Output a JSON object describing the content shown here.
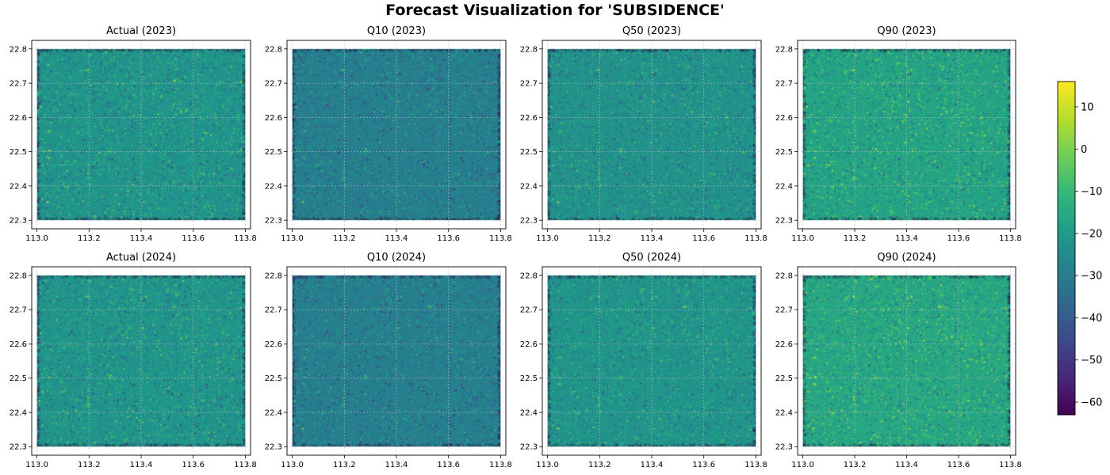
{
  "figure": {
    "title": "Forecast Visualization for 'SUBSIDENCE'"
  },
  "colors": {
    "grid": "#bdbdbd",
    "viridis": [
      "#440154",
      "#482878",
      "#3e4989",
      "#31688e",
      "#26828e",
      "#1f9e89",
      "#35b779",
      "#6ece58",
      "#b5de2b",
      "#fde725"
    ]
  },
  "chart_data": [
    {
      "type": "scatter",
      "title": "Actual (2023)",
      "xlim": [
        112.98,
        113.82
      ],
      "ylim": [
        22.275,
        22.825
      ],
      "xticks": [
        113.0,
        113.2,
        113.4,
        113.6,
        113.8
      ],
      "xtick_labels": [
        "113.0",
        "113.2",
        "113.4",
        "113.6",
        "113.8"
      ],
      "yticks": [
        22.3,
        22.4,
        22.5,
        22.6,
        22.7,
        22.8
      ],
      "ytick_labels": [
        "22.3",
        "22.4",
        "22.5",
        "22.6",
        "22.7",
        "22.8"
      ],
      "x_range": [
        113.0,
        113.8
      ],
      "y_range": [
        22.3,
        22.8
      ],
      "value_mean": -22,
      "value_spread": 9,
      "grid": true,
      "xlabel": "",
      "ylabel": ""
    },
    {
      "type": "scatter",
      "title": "Q10 (2023)",
      "xlim": [
        112.98,
        113.82
      ],
      "ylim": [
        22.275,
        22.825
      ],
      "xticks": [
        113.0,
        113.2,
        113.4,
        113.6,
        113.8
      ],
      "xtick_labels": [
        "113.0",
        "113.2",
        "113.4",
        "113.6",
        "113.8"
      ],
      "yticks": [
        22.3,
        22.4,
        22.5,
        22.6,
        22.7,
        22.8
      ],
      "ytick_labels": [
        "22.3",
        "22.4",
        "22.5",
        "22.6",
        "22.7",
        "22.8"
      ],
      "x_range": [
        113.0,
        113.8
      ],
      "y_range": [
        22.3,
        22.8
      ],
      "value_mean": -29,
      "value_spread": 8,
      "grid": true,
      "xlabel": "",
      "ylabel": ""
    },
    {
      "type": "scatter",
      "title": "Q50 (2023)",
      "xlim": [
        112.98,
        113.82
      ],
      "ylim": [
        22.275,
        22.825
      ],
      "xticks": [
        113.0,
        113.2,
        113.4,
        113.6,
        113.8
      ],
      "xtick_labels": [
        "113.0",
        "113.2",
        "113.4",
        "113.6",
        "113.8"
      ],
      "yticks": [
        22.3,
        22.4,
        22.5,
        22.6,
        22.7,
        22.8
      ],
      "ytick_labels": [
        "22.3",
        "22.4",
        "22.5",
        "22.6",
        "22.7",
        "22.8"
      ],
      "x_range": [
        113.0,
        113.8
      ],
      "y_range": [
        22.3,
        22.8
      ],
      "value_mean": -23,
      "value_spread": 8,
      "grid": true,
      "xlabel": "",
      "ylabel": ""
    },
    {
      "type": "scatter",
      "title": "Q90 (2023)",
      "xlim": [
        112.98,
        113.82
      ],
      "ylim": [
        22.275,
        22.825
      ],
      "xticks": [
        113.0,
        113.2,
        113.4,
        113.6,
        113.8
      ],
      "xtick_labels": [
        "113.0",
        "113.2",
        "113.4",
        "113.6",
        "113.8"
      ],
      "yticks": [
        22.3,
        22.4,
        22.5,
        22.6,
        22.7,
        22.8
      ],
      "ytick_labels": [
        "22.3",
        "22.4",
        "22.5",
        "22.6",
        "22.7",
        "22.8"
      ],
      "x_range": [
        113.0,
        113.8
      ],
      "y_range": [
        22.3,
        22.8
      ],
      "value_mean": -17,
      "value_spread": 9,
      "grid": true,
      "xlabel": "",
      "ylabel": ""
    },
    {
      "type": "scatter",
      "title": "Actual (2024)",
      "xlim": [
        112.98,
        113.82
      ],
      "ylim": [
        22.275,
        22.825
      ],
      "xticks": [
        113.0,
        113.2,
        113.4,
        113.6,
        113.8
      ],
      "xtick_labels": [
        "113.0",
        "113.2",
        "113.4",
        "113.6",
        "113.8"
      ],
      "yticks": [
        22.3,
        22.4,
        22.5,
        22.6,
        22.7,
        22.8
      ],
      "ytick_labels": [
        "22.3",
        "22.4",
        "22.5",
        "22.6",
        "22.7",
        "22.8"
      ],
      "x_range": [
        113.0,
        113.8
      ],
      "y_range": [
        22.3,
        22.8
      ],
      "value_mean": -22,
      "value_spread": 9,
      "grid": true,
      "xlabel": "",
      "ylabel": ""
    },
    {
      "type": "scatter",
      "title": "Q10 (2024)",
      "xlim": [
        112.98,
        113.82
      ],
      "ylim": [
        22.275,
        22.825
      ],
      "xticks": [
        113.0,
        113.2,
        113.4,
        113.6,
        113.8
      ],
      "xtick_labels": [
        "113.0",
        "113.2",
        "113.4",
        "113.6",
        "113.8"
      ],
      "yticks": [
        22.3,
        22.4,
        22.5,
        22.6,
        22.7,
        22.8
      ],
      "ytick_labels": [
        "22.3",
        "22.4",
        "22.5",
        "22.6",
        "22.7",
        "22.8"
      ],
      "x_range": [
        113.0,
        113.8
      ],
      "y_range": [
        22.3,
        22.8
      ],
      "value_mean": -29,
      "value_spread": 8,
      "grid": true,
      "xlabel": "",
      "ylabel": ""
    },
    {
      "type": "scatter",
      "title": "Q50 (2024)",
      "xlim": [
        112.98,
        113.82
      ],
      "ylim": [
        22.275,
        22.825
      ],
      "xticks": [
        113.0,
        113.2,
        113.4,
        113.6,
        113.8
      ],
      "xtick_labels": [
        "113.0",
        "113.2",
        "113.4",
        "113.6",
        "113.8"
      ],
      "yticks": [
        22.3,
        22.4,
        22.5,
        22.6,
        22.7,
        22.8
      ],
      "ytick_labels": [
        "22.3",
        "22.4",
        "22.5",
        "22.6",
        "22.7",
        "22.8"
      ],
      "x_range": [
        113.0,
        113.8
      ],
      "y_range": [
        22.3,
        22.8
      ],
      "value_mean": -22,
      "value_spread": 8,
      "grid": true,
      "xlabel": "",
      "ylabel": ""
    },
    {
      "type": "scatter",
      "title": "Q90 (2024)",
      "xlim": [
        112.98,
        113.82
      ],
      "ylim": [
        22.275,
        22.825
      ],
      "xticks": [
        113.0,
        113.2,
        113.4,
        113.6,
        113.8
      ],
      "xtick_labels": [
        "113.0",
        "113.2",
        "113.4",
        "113.6",
        "113.8"
      ],
      "yticks": [
        22.3,
        22.4,
        22.5,
        22.6,
        22.7,
        22.8
      ],
      "ytick_labels": [
        "22.3",
        "22.4",
        "22.5",
        "22.6",
        "22.7",
        "22.8"
      ],
      "x_range": [
        113.0,
        113.8
      ],
      "y_range": [
        22.3,
        22.8
      ],
      "value_mean": -16,
      "value_spread": 9,
      "grid": true,
      "xlabel": "",
      "ylabel": ""
    }
  ],
  "colorbar": {
    "colormap": "viridis",
    "vmin": -63,
    "vmax": 16,
    "ticks": [
      -60,
      -50,
      -40,
      -30,
      -20,
      -10,
      0,
      10
    ],
    "tick_labels": [
      "−60",
      "−50",
      "−40",
      "−30",
      "−20",
      "−10",
      "0",
      "10"
    ]
  }
}
